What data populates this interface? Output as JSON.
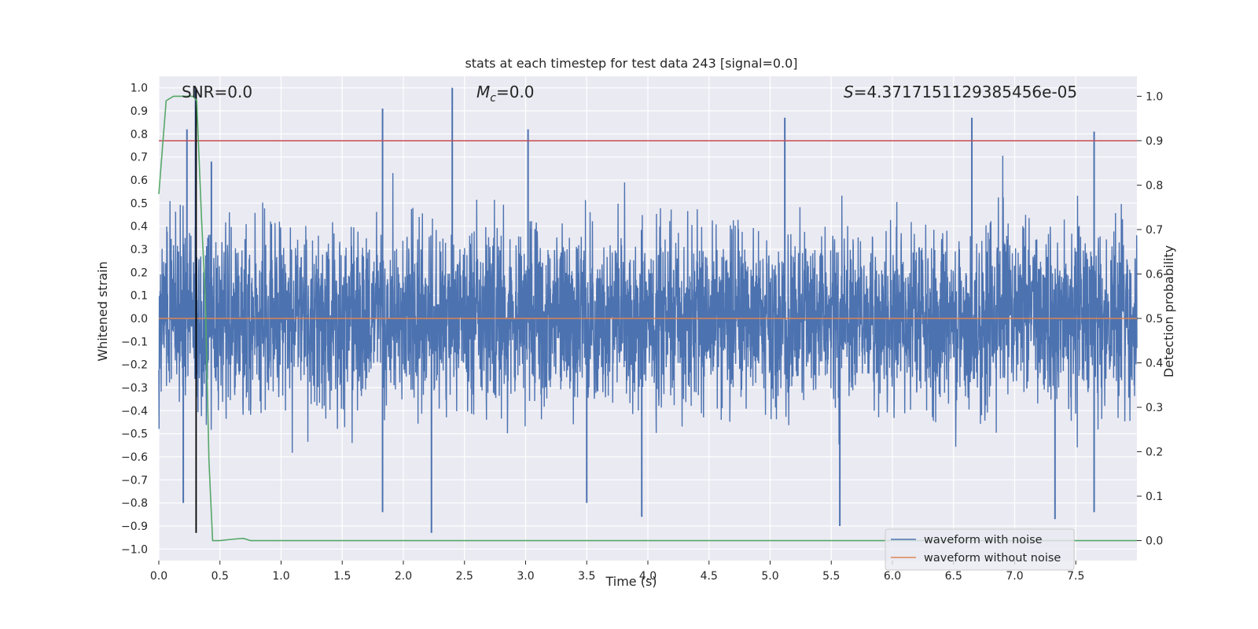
{
  "chart_data": {
    "type": "line",
    "title": "stats at each timestep for test data 243 [signal=0.0]",
    "xlabel": "Time (s)",
    "ylabel_left": "Whitened strain",
    "ylabel_right": "Detection probability",
    "xlim": [
      0.0,
      8.0
    ],
    "ylim_left": [
      -1.05,
      1.05
    ],
    "ylim_right": [
      -0.045,
      1.045
    ],
    "x_ticks": [
      0.0,
      0.5,
      1.0,
      1.5,
      2.0,
      2.5,
      3.0,
      3.5,
      4.0,
      4.5,
      5.0,
      5.5,
      6.0,
      6.5,
      7.0,
      7.5
    ],
    "y_ticks_left": [
      -1.0,
      -0.9,
      -0.8,
      -0.7,
      -0.6,
      -0.5,
      -0.4,
      -0.3,
      -0.2,
      -0.1,
      0.0,
      0.1,
      0.2,
      0.3,
      0.4,
      0.5,
      0.6,
      0.7,
      0.8,
      0.9,
      1.0
    ],
    "y_ticks_right": [
      0.0,
      0.1,
      0.2,
      0.3,
      0.4,
      0.5,
      0.6,
      0.7,
      0.8,
      0.9,
      1.0
    ],
    "grid": true,
    "legend_placement": "lower right",
    "annotations": {
      "snr": "SNR=0.0",
      "mc_symbol": "M",
      "mc_sub": "c",
      "mc_value": "=0.0",
      "s_symbol": "S",
      "s_value": "=4.3717151129385456e-05"
    },
    "series": [
      {
        "name": "waveform with noise",
        "color": "#4c72b0",
        "axis": "left",
        "description_values": "dense noise, typical band about -0.4 to 0.4",
        "peaks": [
          [
            0.23,
            0.82
          ],
          [
            0.3,
            1.0
          ],
          [
            0.43,
            0.68
          ],
          [
            1.83,
            0.91
          ],
          [
            2.4,
            1.0
          ],
          [
            3.02,
            0.82
          ],
          [
            5.12,
            0.87
          ],
          [
            6.65,
            0.87
          ],
          [
            7.65,
            0.81
          ],
          [
            0.2,
            -0.8
          ],
          [
            1.83,
            -0.84
          ],
          [
            2.23,
            -0.93
          ],
          [
            3.5,
            -0.8
          ],
          [
            3.95,
            -0.86
          ],
          [
            5.57,
            -0.9
          ],
          [
            7.33,
            -0.87
          ],
          [
            7.65,
            -0.84
          ]
        ]
      },
      {
        "name": "waveform without noise",
        "color": "#dd8452",
        "axis": "left",
        "x": [
          0.0,
          8.0
        ],
        "y": [
          0.0,
          0.0
        ]
      },
      {
        "name": "",
        "color": "#55a868",
        "axis": "right",
        "x": [
          0.0,
          0.06,
          0.12,
          0.2,
          0.28,
          0.31,
          0.35,
          0.38,
          0.41,
          0.44,
          0.5,
          0.6,
          0.69,
          0.75,
          0.85,
          1.0,
          2.0,
          4.0,
          6.0,
          8.0
        ],
        "y": [
          0.78,
          0.99,
          1.0,
          1.0,
          1.0,
          0.99,
          0.72,
          0.55,
          0.18,
          0.0,
          0.0,
          0.003,
          0.005,
          0.0,
          0.0,
          0.0,
          0.0,
          0.0,
          0.0,
          0.0
        ]
      }
    ],
    "reference_lines": [
      {
        "orientation": "horizontal",
        "axis": "right",
        "value": 0.9,
        "color": "#c44e52"
      },
      {
        "orientation": "vertical",
        "x": 0.305,
        "from": -0.93,
        "to": 1.0,
        "axis": "left",
        "color": "#000000"
      }
    ]
  }
}
